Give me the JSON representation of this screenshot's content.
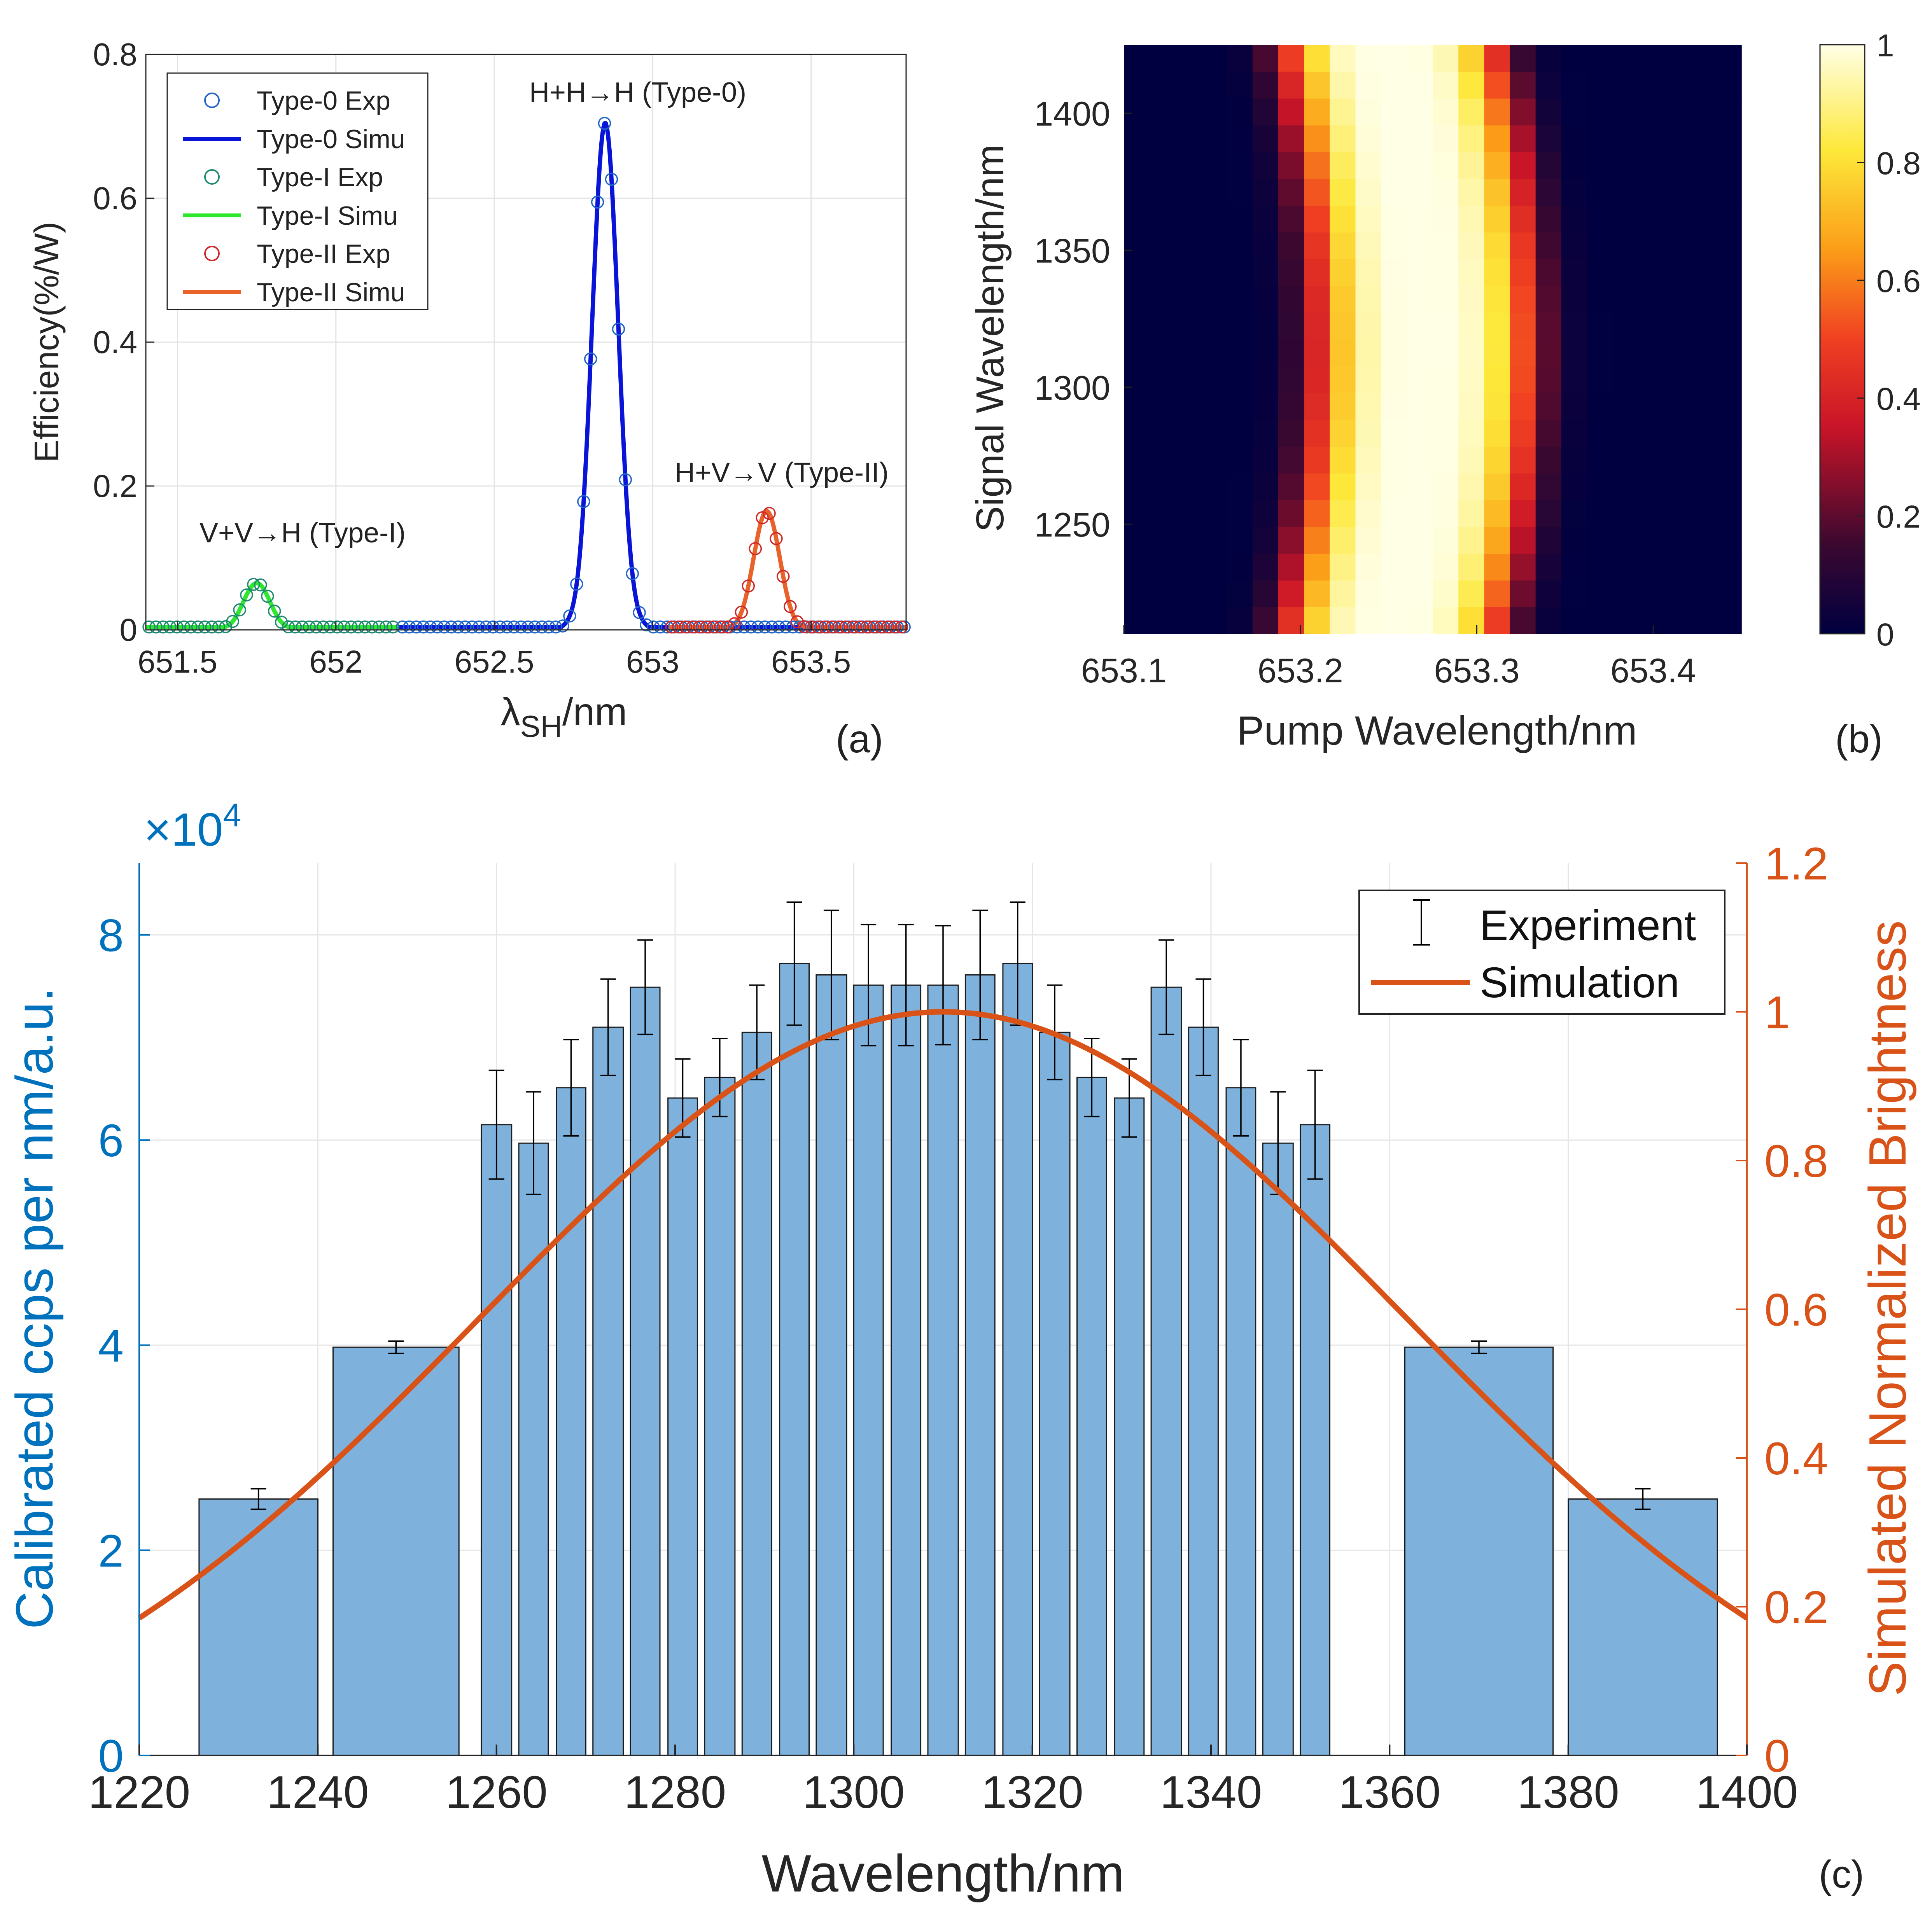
{
  "figure": {
    "panel_labels": [
      "(a)",
      "(b)",
      "(c)"
    ]
  },
  "chart_data": [
    {
      "id": "a",
      "type": "line",
      "title": "",
      "xlabel_main": "λ",
      "xlabel_sub": "SH",
      "xlabel_tail": "/nm",
      "ylabel": "Efficiency(%/W)",
      "xlim": [
        651.4,
        653.8
      ],
      "ylim": [
        0,
        0.8
      ],
      "xticks": [
        651.5,
        652,
        652.5,
        653,
        653.5
      ],
      "xtick_labels": [
        "651.5",
        "652",
        "652.5",
        "653",
        "653.5"
      ],
      "yticks": [
        0,
        0.2,
        0.4,
        0.6,
        0.8
      ],
      "ytick_labels": [
        "0",
        "0.2",
        "0.4",
        "0.6",
        "0.8"
      ],
      "grid": true,
      "legend_position": "top-left",
      "legend": [
        {
          "label": "Type-0 Exp",
          "kind": "marker",
          "color": "#2166c8"
        },
        {
          "label": "Type-0 Simu",
          "kind": "line",
          "color": "#0a14d8"
        },
        {
          "label": "Type-I Exp",
          "kind": "marker",
          "color": "#1f8a70"
        },
        {
          "label": "Type-I Simu",
          "kind": "line",
          "color": "#2ee82e"
        },
        {
          "label": "Type-II Exp",
          "kind": "marker",
          "color": "#d02828"
        },
        {
          "label": "Type-II Simu",
          "kind": "line",
          "color": "#e8622a"
        }
      ],
      "annotations": [
        {
          "text": "H+H→H (Type-0)",
          "x": 652.85,
          "y": 0.76
        },
        {
          "text": "H+V→V (Type-II)",
          "x": 653.35,
          "y": 0.22
        },
        {
          "text": "V+V→H (Type-I)",
          "x": 651.75,
          "y": 0.13
        }
      ],
      "series": [
        {
          "name": "Type-I Simu",
          "color": "#2ee82e",
          "center": 651.75,
          "height": 0.065,
          "width": 0.055,
          "ripple": 0.004,
          "range": [
            651.4,
            652.2
          ]
        },
        {
          "name": "Type-0 Simu",
          "color": "#0a14d8",
          "center": 652.85,
          "height": 0.705,
          "width": 0.055,
          "ripple": 0.006,
          "range": [
            652.2,
            653.8
          ]
        },
        {
          "name": "Type-II Simu",
          "color": "#e8622a",
          "center": 653.36,
          "height": 0.165,
          "width": 0.055,
          "ripple": 0.004,
          "range": [
            653.05,
            653.8
          ]
        }
      ]
    },
    {
      "id": "b",
      "type": "heatmap",
      "xlabel": "Pump Wavelength/nm",
      "ylabel": "Signal Wavelength/nm",
      "xlim": [
        653.1,
        653.45
      ],
      "ylim": [
        1210,
        1425
      ],
      "xticks": [
        653.1,
        653.2,
        653.3,
        653.4
      ],
      "xtick_labels": [
        "653.1",
        "653.2",
        "653.3",
        "653.4"
      ],
      "yticks": [
        1250,
        1300,
        1350,
        1400
      ],
      "ytick_labels": [
        "1250",
        "1300",
        "1350",
        "1400"
      ],
      "colorbar_range": [
        0,
        1
      ],
      "colorbar_ticks": [
        0,
        0.2,
        0.4,
        0.6,
        0.8,
        1
      ],
      "colorbar_tick_labels": [
        "0",
        "0.2",
        "0.4",
        "0.6",
        "0.8",
        "1"
      ],
      "colormap": "hot",
      "model": {
        "x_center_at_mid": 653.27,
        "curvature": 1.6e-06,
        "y_mid": 1315,
        "sigma": 0.048
      },
      "grid_cells": [
        24,
        22
      ]
    },
    {
      "id": "c",
      "type": "bar",
      "xlabel": "Wavelength/nm",
      "ylabel_left": "Calibrated ccps per nm/a.u.",
      "ylabel_right": "Simulated Normalized Brightness",
      "y_exponent_label": "×10",
      "y_exponent_power": "4",
      "xlim": [
        1220,
        1400
      ],
      "ylim_left": [
        0,
        87000
      ],
      "ylim_right": [
        0,
        1.2
      ],
      "xticks": [
        1220,
        1240,
        1260,
        1280,
        1300,
        1320,
        1340,
        1360,
        1380,
        1400
      ],
      "xtick_labels": [
        "1220",
        "1240",
        "1260",
        "1280",
        "1300",
        "1320",
        "1340",
        "1360",
        "1380",
        "1400"
      ],
      "yticks_left": [
        0,
        20000,
        40000,
        60000,
        80000
      ],
      "ytick_labels_left": [
        "0",
        "2",
        "4",
        "6",
        "8"
      ],
      "yticks_right": [
        0,
        0.2,
        0.4,
        0.6,
        0.8,
        1,
        1.2
      ],
      "ytick_labels_right": [
        "0",
        "0.2",
        "0.4",
        "0.6",
        "0.8",
        "1",
        "1.2"
      ],
      "grid": true,
      "legend_position": "top-right",
      "legend": [
        {
          "label": "Experiment",
          "kind": "errorbar",
          "color": "#000000"
        },
        {
          "label": "Simulation",
          "kind": "line",
          "color": "#d95319"
        }
      ],
      "bar_color": "#7eb2dd",
      "simulation_color": "#d95319",
      "left_axis_color": "#0072bd",
      "right_axis_color": "#d95319",
      "bars": [
        {
          "left": 1226.7,
          "right": 1240.0,
          "value": 25000,
          "err": 1000
        },
        {
          "left": 1241.7,
          "right": 1255.8,
          "value": 39800,
          "err": 600
        },
        {
          "left": 1258.3,
          "right": 1261.7,
          "value": 61500,
          "err": 5300
        },
        {
          "left": 1262.5,
          "right": 1265.8,
          "value": 59700,
          "err": 5000
        },
        {
          "left": 1266.7,
          "right": 1270.0,
          "value": 65100,
          "err": 4700
        },
        {
          "left": 1270.8,
          "right": 1274.2,
          "value": 71000,
          "err": 4700
        },
        {
          "left": 1275.0,
          "right": 1278.3,
          "value": 74900,
          "err": 4600
        },
        {
          "left": 1279.2,
          "right": 1282.5,
          "value": 64100,
          "err": 3800
        },
        {
          "left": 1283.3,
          "right": 1286.7,
          "value": 66100,
          "err": 3800
        },
        {
          "left": 1287.5,
          "right": 1290.8,
          "value": 70500,
          "err": 4600
        },
        {
          "left": 1291.7,
          "right": 1295.0,
          "value": 77200,
          "err": 6000
        },
        {
          "left": 1295.8,
          "right": 1299.2,
          "value": 76100,
          "err": 6300
        },
        {
          "left": 1300.0,
          "right": 1303.3,
          "value": 75100,
          "err": 5900
        },
        {
          "left": 1304.2,
          "right": 1307.5,
          "value": 75100,
          "err": 5900
        },
        {
          "left": 1308.3,
          "right": 1311.7,
          "value": 75100,
          "err": 5800
        },
        {
          "left": 1312.5,
          "right": 1315.8,
          "value": 76100,
          "err": 6300
        },
        {
          "left": 1316.7,
          "right": 1320.0,
          "value": 77200,
          "err": 6000
        },
        {
          "left": 1320.8,
          "right": 1324.2,
          "value": 70500,
          "err": 4600
        },
        {
          "left": 1325.0,
          "right": 1328.3,
          "value": 66100,
          "err": 3800
        },
        {
          "left": 1329.2,
          "right": 1332.5,
          "value": 64100,
          "err": 3800
        },
        {
          "left": 1333.3,
          "right": 1336.7,
          "value": 74900,
          "err": 4600
        },
        {
          "left": 1337.5,
          "right": 1340.8,
          "value": 71000,
          "err": 4700
        },
        {
          "left": 1341.7,
          "right": 1345.0,
          "value": 65100,
          "err": 4700
        },
        {
          "left": 1345.8,
          "right": 1349.2,
          "value": 59700,
          "err": 5000
        },
        {
          "left": 1350.0,
          "right": 1353.3,
          "value": 61500,
          "err": 5300
        },
        {
          "left": 1361.7,
          "right": 1378.3,
          "value": 39800,
          "err": 600
        },
        {
          "left": 1380.0,
          "right": 1396.7,
          "value": 25000,
          "err": 1000
        }
      ],
      "simulation": {
        "center": 1310,
        "sigma": 52,
        "base": -0.05,
        "peak": 1.0
      }
    }
  ]
}
